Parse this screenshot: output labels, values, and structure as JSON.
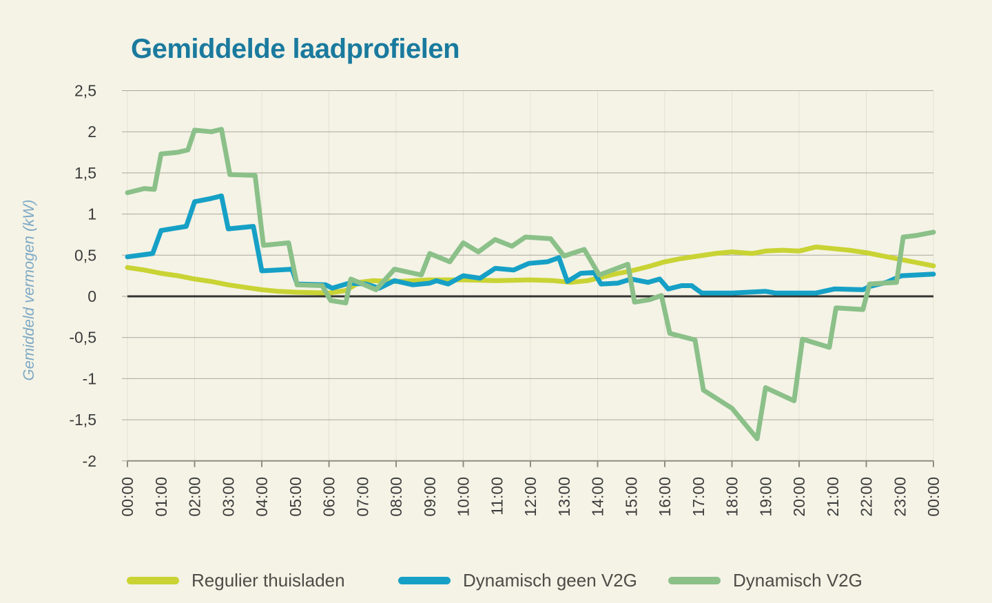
{
  "title": "Gemiddelde laadprofielen",
  "y_axis": {
    "label": "Gemiddeld vermogen (kW)",
    "tick_labels": [
      "2,5",
      "2",
      "1,5",
      "1",
      "0,5",
      "0",
      "-0,5",
      "-1",
      "-1,5",
      "-2"
    ],
    "tick_values": [
      2.5,
      2,
      1.5,
      1,
      0.5,
      0,
      -0.5,
      -1,
      -1.5,
      -2
    ]
  },
  "x_axis": {
    "tick_labels": [
      "00:00",
      "01:00",
      "02:00",
      "03:00",
      "04:00",
      "05:00",
      "06:00",
      "07:00",
      "08:00",
      "09:00",
      "10:00",
      "11:00",
      "12:00",
      "13:00",
      "14:00",
      "15:00",
      "16:00",
      "17:00",
      "18:00",
      "19:00",
      "20:00",
      "21:00",
      "22:00",
      "23:00",
      "00:00"
    ],
    "gridline_every_hours": 2
  },
  "legend": {
    "items": [
      {
        "label": "Regulier thuisladen",
        "color": "#c9d334"
      },
      {
        "label": "Dynamisch geen V2G",
        "color": "#16a0c6"
      },
      {
        "label": "Dynamisch V2G",
        "color": "#8bc089"
      }
    ]
  },
  "colors": {
    "background": "#f4f3e6",
    "title": "#1a7a9e",
    "y_axis_title": "#7fa9c4",
    "tick_text": "#3c3c3c",
    "grid_horizontal": "#a9a89d",
    "grid_vertical": "#e2e0d2",
    "zero_line": "#333330",
    "bottom_axis": "#8e8d82"
  },
  "chart_data": {
    "type": "line",
    "title": "Gemiddelde laadprofielen",
    "xlabel": "",
    "ylabel": "Gemiddeld vermogen (kW)",
    "ylim": [
      -2,
      2.5
    ],
    "xlim_hours": [
      0,
      24
    ],
    "grid": true,
    "legend_position": "bottom",
    "series": [
      {
        "name": "Regulier thuisladen",
        "color": "#c9d334",
        "points": [
          [
            0,
            0.35
          ],
          [
            0.5,
            0.32
          ],
          [
            1,
            0.28
          ],
          [
            1.5,
            0.25
          ],
          [
            2,
            0.21
          ],
          [
            2.5,
            0.18
          ],
          [
            3,
            0.14
          ],
          [
            3.5,
            0.11
          ],
          [
            4,
            0.08
          ],
          [
            4.5,
            0.06
          ],
          [
            5,
            0.05
          ],
          [
            6,
            0.04
          ],
          [
            6.5,
            0.07
          ],
          [
            6.9,
            0.17
          ],
          [
            7.3,
            0.19
          ],
          [
            8,
            0.18
          ],
          [
            9,
            0.2
          ],
          [
            10,
            0.2
          ],
          [
            11,
            0.19
          ],
          [
            12,
            0.2
          ],
          [
            12.7,
            0.19
          ],
          [
            13.2,
            0.17
          ],
          [
            13.7,
            0.19
          ],
          [
            14,
            0.22
          ],
          [
            14.5,
            0.27
          ],
          [
            15,
            0.31
          ],
          [
            15.5,
            0.36
          ],
          [
            16,
            0.42
          ],
          [
            16.5,
            0.46
          ],
          [
            17,
            0.49
          ],
          [
            17.5,
            0.52
          ],
          [
            18,
            0.54
          ],
          [
            18.6,
            0.52
          ],
          [
            19,
            0.55
          ],
          [
            19.5,
            0.56
          ],
          [
            20,
            0.55
          ],
          [
            20.5,
            0.6
          ],
          [
            21,
            0.58
          ],
          [
            21.5,
            0.56
          ],
          [
            22,
            0.53
          ],
          [
            22.5,
            0.49
          ],
          [
            23,
            0.45
          ],
          [
            23.5,
            0.41
          ],
          [
            24,
            0.37
          ]
        ]
      },
      {
        "name": "Dynamisch geen V2G",
        "color": "#16a0c6",
        "points": [
          [
            0,
            0.48
          ],
          [
            0.75,
            0.52
          ],
          [
            1,
            0.8
          ],
          [
            1.75,
            0.85
          ],
          [
            2,
            1.15
          ],
          [
            2.5,
            1.19
          ],
          [
            2.8,
            1.22
          ],
          [
            3,
            0.82
          ],
          [
            3.75,
            0.85
          ],
          [
            4,
            0.31
          ],
          [
            4.9,
            0.33
          ],
          [
            5.05,
            0.15
          ],
          [
            5.9,
            0.14
          ],
          [
            6.1,
            0.1
          ],
          [
            6.6,
            0.16
          ],
          [
            7.1,
            0.15
          ],
          [
            7.5,
            0.1
          ],
          [
            7.95,
            0.19
          ],
          [
            8.5,
            0.14
          ],
          [
            9,
            0.16
          ],
          [
            9.2,
            0.19
          ],
          [
            9.55,
            0.15
          ],
          [
            10,
            0.25
          ],
          [
            10.5,
            0.22
          ],
          [
            10.95,
            0.34
          ],
          [
            11.5,
            0.32
          ],
          [
            11.95,
            0.4
          ],
          [
            12.5,
            0.42
          ],
          [
            12.85,
            0.47
          ],
          [
            13.1,
            0.18
          ],
          [
            13.5,
            0.28
          ],
          [
            13.9,
            0.29
          ],
          [
            14.1,
            0.15
          ],
          [
            14.6,
            0.16
          ],
          [
            15,
            0.21
          ],
          [
            15.5,
            0.17
          ],
          [
            15.85,
            0.21
          ],
          [
            16.1,
            0.09
          ],
          [
            16.5,
            0.13
          ],
          [
            16.8,
            0.13
          ],
          [
            17.1,
            0.04
          ],
          [
            18,
            0.04
          ],
          [
            19,
            0.06
          ],
          [
            19.3,
            0.04
          ],
          [
            20.5,
            0.04
          ],
          [
            21.05,
            0.09
          ],
          [
            21.9,
            0.08
          ],
          [
            22.1,
            0.12
          ],
          [
            22.6,
            0.17
          ],
          [
            23.05,
            0.25
          ],
          [
            24,
            0.27
          ]
        ]
      },
      {
        "name": "Dynamisch V2G",
        "color": "#8bc089",
        "points": [
          [
            0,
            1.26
          ],
          [
            0.5,
            1.31
          ],
          [
            0.8,
            1.3
          ],
          [
            1,
            1.73
          ],
          [
            1.5,
            1.75
          ],
          [
            1.8,
            1.78
          ],
          [
            2,
            2.02
          ],
          [
            2.5,
            2.0
          ],
          [
            2.8,
            2.03
          ],
          [
            3.05,
            1.48
          ],
          [
            3.8,
            1.47
          ],
          [
            4.05,
            0.62
          ],
          [
            4.8,
            0.65
          ],
          [
            5.05,
            0.14
          ],
          [
            5.8,
            0.13
          ],
          [
            6.05,
            -0.05
          ],
          [
            6.5,
            -0.08
          ],
          [
            6.65,
            0.21
          ],
          [
            7.4,
            0.08
          ],
          [
            7.95,
            0.33
          ],
          [
            8.75,
            0.26
          ],
          [
            9,
            0.52
          ],
          [
            9.6,
            0.42
          ],
          [
            10,
            0.65
          ],
          [
            10.45,
            0.54
          ],
          [
            10.95,
            0.69
          ],
          [
            11.45,
            0.61
          ],
          [
            11.85,
            0.72
          ],
          [
            12.6,
            0.7
          ],
          [
            13,
            0.49
          ],
          [
            13.6,
            0.57
          ],
          [
            14.05,
            0.26
          ],
          [
            14.9,
            0.39
          ],
          [
            15.1,
            -0.07
          ],
          [
            15.55,
            -0.04
          ],
          [
            15.9,
            0.01
          ],
          [
            16.15,
            -0.45
          ],
          [
            16.9,
            -0.53
          ],
          [
            17.15,
            -1.14
          ],
          [
            18,
            -1.36
          ],
          [
            18.75,
            -1.73
          ],
          [
            19,
            -1.11
          ],
          [
            19.85,
            -1.27
          ],
          [
            20.1,
            -0.52
          ],
          [
            20.9,
            -0.62
          ],
          [
            21.1,
            -0.14
          ],
          [
            21.9,
            -0.16
          ],
          [
            22.1,
            0.15
          ],
          [
            22.9,
            0.17
          ],
          [
            23.1,
            0.72
          ],
          [
            23.5,
            0.74
          ],
          [
            24,
            0.78
          ]
        ]
      }
    ]
  }
}
